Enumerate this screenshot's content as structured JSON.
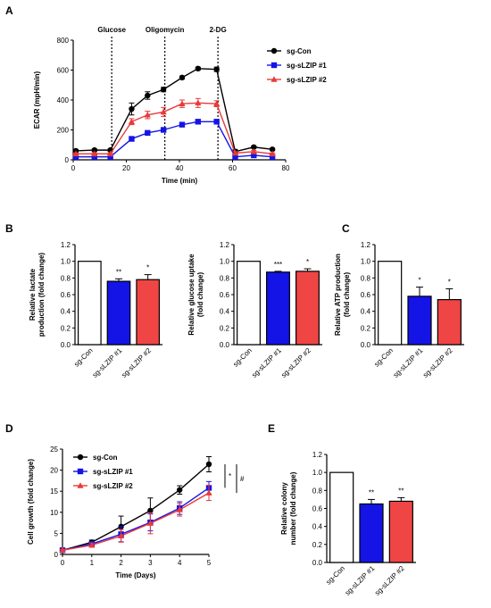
{
  "chart_data": [
    {
      "panel": "A",
      "type": "line",
      "title": "",
      "xlabel": "Time (min)",
      "ylabel": "ECAR (mpH/min)",
      "xlim": [
        0,
        80
      ],
      "ylim": [
        0,
        800
      ],
      "xticks": [
        0,
        20,
        40,
        60,
        80
      ],
      "yticks": [
        0,
        200,
        400,
        600,
        800
      ],
      "grid": false,
      "legend": "top-right",
      "annotations": [
        {
          "label": "Glucose",
          "x": 14.5
        },
        {
          "label": "Oligomycin",
          "x": 34.5
        },
        {
          "label": "2-DG",
          "x": 54.5
        }
      ],
      "x": [
        1,
        8,
        14,
        22,
        28,
        34,
        41,
        47,
        54,
        61,
        68,
        75
      ],
      "series": [
        {
          "name": "sg-Con",
          "color": "#000000",
          "marker": "circle",
          "values": [
            60,
            65,
            65,
            340,
            430,
            470,
            550,
            610,
            605,
            55,
            85,
            70
          ],
          "errors": [
            8,
            8,
            8,
            40,
            25,
            15,
            10,
            10,
            15,
            15,
            8,
            8
          ]
        },
        {
          "name": "sg-sLZIP #1",
          "color": "#1414e6",
          "marker": "square",
          "values": [
            20,
            20,
            20,
            140,
            180,
            200,
            235,
            255,
            255,
            20,
            30,
            20
          ],
          "errors": [
            4,
            4,
            4,
            10,
            10,
            12,
            10,
            10,
            10,
            6,
            6,
            6
          ]
        },
        {
          "name": "sg-sLZIP #2",
          "color": "#e83a3a",
          "marker": "triangle",
          "values": [
            40,
            40,
            40,
            255,
            300,
            320,
            375,
            380,
            375,
            45,
            55,
            40
          ],
          "errors": [
            6,
            6,
            6,
            20,
            25,
            30,
            25,
            30,
            20,
            10,
            8,
            6
          ]
        }
      ]
    },
    {
      "panel": "B",
      "type": "bar",
      "title": "",
      "ylabel": "Relative  lactate production (fold change)",
      "ylabel_lines": [
        "Relative  lactate",
        "production (fold change)"
      ],
      "ylim": [
        0,
        1.2
      ],
      "yticks": [
        0.0,
        0.2,
        0.4,
        0.6,
        0.8,
        1.0,
        1.2
      ],
      "categories": [
        "sg-Con",
        "sg-sLZIP #1",
        "sg-sLZIP #2"
      ],
      "values": [
        1.0,
        0.76,
        0.78
      ],
      "errors": [
        0,
        0.03,
        0.06
      ],
      "significance": [
        "",
        "**",
        "*"
      ]
    },
    {
      "panel": "B",
      "type": "bar",
      "title": "",
      "ylabel": "Relative  glucose uptake (fold change)",
      "ylabel_lines": [
        "Relative  glucose uptake",
        "(fold change)"
      ],
      "ylim": [
        0,
        1.2
      ],
      "yticks": [
        0.0,
        0.2,
        0.4,
        0.6,
        0.8,
        1.0,
        1.2
      ],
      "categories": [
        "sg-Con",
        "sg-sLZIP #1",
        "sg-sLZIP #2"
      ],
      "values": [
        1.0,
        0.87,
        0.88
      ],
      "errors": [
        0,
        0.01,
        0.03
      ],
      "significance": [
        "",
        "***",
        "*"
      ]
    },
    {
      "panel": "C",
      "type": "bar",
      "title": "",
      "ylabel": "Relative  ATP production (fold change)",
      "ylabel_lines": [
        "Relative  ATP production",
        "(fold change)"
      ],
      "ylim": [
        0,
        1.2
      ],
      "yticks": [
        0.0,
        0.2,
        0.4,
        0.6,
        0.8,
        1.0,
        1.2
      ],
      "categories": [
        "sg-Con",
        "sg-sLZIP #1",
        "sg-sLZIP #2"
      ],
      "values": [
        1.0,
        0.58,
        0.54
      ],
      "errors": [
        0,
        0.11,
        0.13
      ],
      "significance": [
        "",
        "*",
        "*"
      ]
    },
    {
      "panel": "D",
      "type": "line",
      "title": "",
      "xlabel": "Time (Days)",
      "ylabel": "Cell growth (fold change)",
      "xlim": [
        0,
        5
      ],
      "ylim": [
        0,
        25
      ],
      "xticks": [
        0,
        1,
        2,
        3,
        4,
        5
      ],
      "yticks": [
        0,
        5,
        10,
        15,
        20,
        25
      ],
      "grid": false,
      "legend": "top-left",
      "bracket_labels": [
        "*",
        "#"
      ],
      "x": [
        0,
        1,
        2,
        3,
        4,
        5
      ],
      "series": [
        {
          "name": "sg-Con",
          "color": "#000000",
          "marker": "circle",
          "values": [
            1.0,
            2.9,
            6.6,
            10.4,
            15.3,
            21.4
          ],
          "errors": [
            0.2,
            0.5,
            2.5,
            3.0,
            1.0,
            1.8
          ]
        },
        {
          "name": "sg-sLZIP #1",
          "color": "#1414e6",
          "marker": "square",
          "values": [
            1.0,
            2.5,
            4.8,
            7.6,
            11.0,
            15.8
          ],
          "errors": [
            0.2,
            0.5,
            1.8,
            2.0,
            1.5,
            1.5
          ]
        },
        {
          "name": "sg-sLZIP #2",
          "color": "#e83a3a",
          "marker": "triangle",
          "values": [
            1.0,
            2.2,
            4.4,
            7.4,
            10.6,
            14.6
          ],
          "errors": [
            0.2,
            0.5,
            1.5,
            2.5,
            1.5,
            1.8
          ]
        }
      ]
    },
    {
      "panel": "E",
      "type": "bar",
      "title": "",
      "ylabel": "Relative colony number (fold change)",
      "ylabel_lines": [
        "Relative colony",
        "number (fold change)"
      ],
      "ylim": [
        0,
        1.2
      ],
      "yticks": [
        0.0,
        0.2,
        0.4,
        0.6,
        0.8,
        1.0,
        1.2
      ],
      "categories": [
        "sg-Con",
        "sg-sLZIP #1",
        "sg-sLZIP #2"
      ],
      "values": [
        1.0,
        0.65,
        0.68
      ],
      "errors": [
        0,
        0.05,
        0.04
      ],
      "significance": [
        "",
        "**",
        "**"
      ]
    }
  ]
}
